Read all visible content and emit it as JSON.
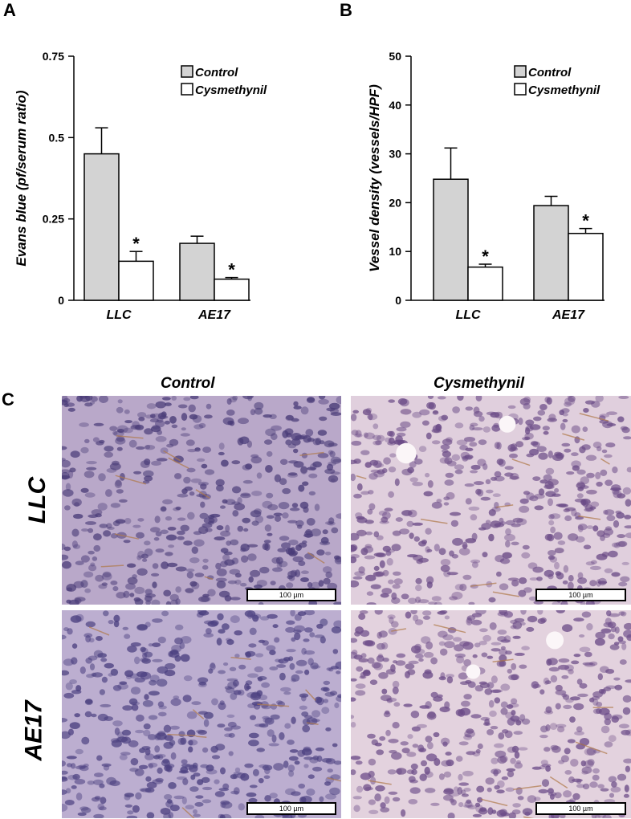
{
  "panels": {
    "a": "A",
    "b": "B",
    "c": "C"
  },
  "chart_data": [
    {
      "type": "bar",
      "ylabel": "Evans blue (pf/serum ratio)",
      "categories": [
        "LLC",
        "AE17"
      ],
      "ylim": [
        0,
        0.75
      ],
      "yticks": [
        0,
        0.25,
        0.5,
        0.75
      ],
      "ytick_labels": [
        "0",
        "0.25",
        "0.5",
        "0.75"
      ],
      "series": [
        {
          "name": "Control",
          "values": [
            0.45,
            0.175
          ],
          "errors": [
            0.08,
            0.022
          ],
          "color": "#d3d3d3"
        },
        {
          "name": "Cysmethynil",
          "values": [
            0.12,
            0.065
          ],
          "errors": [
            0.03,
            0.005
          ],
          "color": "#ffffff"
        }
      ],
      "annotations": [
        "*",
        "*"
      ],
      "legend": "top-right"
    },
    {
      "type": "bar",
      "ylabel": "Vessel density (vessels/HPF)",
      "categories": [
        "LLC",
        "AE17"
      ],
      "ylim": [
        0,
        50
      ],
      "yticks": [
        0,
        10,
        20,
        30,
        40,
        50
      ],
      "ytick_labels": [
        "0",
        "10",
        "20",
        "30",
        "40",
        "50"
      ],
      "series": [
        {
          "name": "Control",
          "values": [
            24.8,
            19.4
          ],
          "errors": [
            6.4,
            1.9
          ],
          "color": "#d3d3d3"
        },
        {
          "name": "Cysmethynil",
          "values": [
            6.8,
            13.7
          ],
          "errors": [
            0.6,
            1.0
          ],
          "color": "#ffffff"
        }
      ],
      "annotations": [
        "*",
        "*"
      ],
      "legend": "top-right"
    }
  ],
  "micrographs": {
    "columns": [
      "Control",
      "Cysmethynil"
    ],
    "rows": [
      "LLC",
      "AE17"
    ],
    "scale_label": "100 µm"
  }
}
